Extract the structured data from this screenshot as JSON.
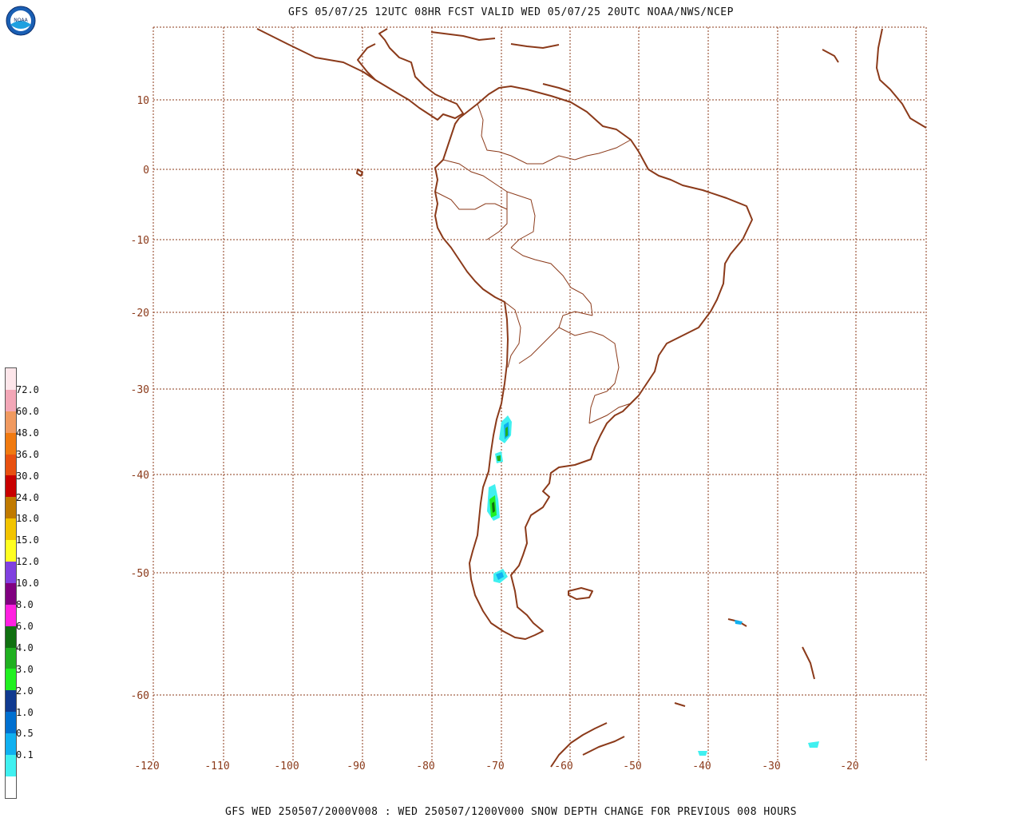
{
  "header": {
    "title": "GFS 05/07/25 12UTC 08HR FCST VALID WED 05/07/25 20UTC NOAA/NWS/NCEP"
  },
  "footer": {
    "caption": "GFS WED 250507/2000V008 : WED 250507/1200V000 SNOW DEPTH CHANGE FOR PREVIOUS 008 HOURS"
  },
  "logo": {
    "text": "NOAA",
    "icon": "noaa-logo-icon"
  },
  "legend": {
    "labels": [
      "72.0",
      "60.0",
      "48.0",
      "36.0",
      "30.0",
      "24.0",
      "18.0",
      "15.0",
      "12.0",
      "10.0",
      "8.0",
      "6.0",
      "4.0",
      "3.0",
      "2.0",
      "1.0",
      "0.5",
      "0.1"
    ],
    "colors": [
      "#fde6ea",
      "#f3a7b7",
      "#f09a60",
      "#f07a10",
      "#e85010",
      "#c80000",
      "#c07a00",
      "#f2c400",
      "#ffff20",
      "#8040e0",
      "#800080",
      "#ff20e0",
      "#107010",
      "#20b020",
      "#20f020",
      "#103a90",
      "#0070d0",
      "#10b0f0",
      "#40f0f0",
      "#ffffff"
    ]
  },
  "map": {
    "lat_labels": [
      "10",
      "0",
      "-10",
      "-20",
      "-30",
      "-40",
      "-50",
      "-60"
    ],
    "lon_labels": [
      "-120",
      "-110",
      "-100",
      "-90",
      "-80",
      "-70",
      "-60",
      "-50",
      "-40",
      "-30",
      "-20"
    ],
    "coast_color": "#8b3a1a",
    "grid_color": "#8b3a1a"
  }
}
